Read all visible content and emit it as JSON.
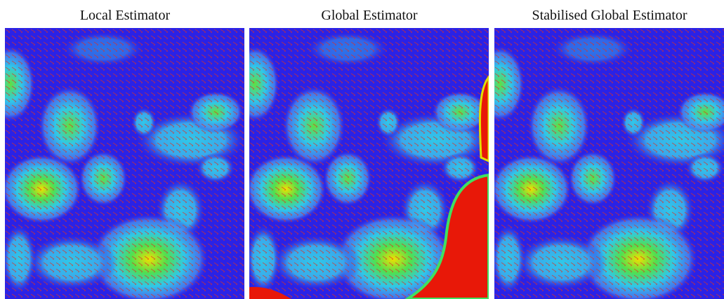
{
  "panels": [
    {
      "title": "Local Estimator"
    },
    {
      "title": "Global Estimator"
    },
    {
      "title": "Stabilised Global Estimator"
    }
  ]
}
